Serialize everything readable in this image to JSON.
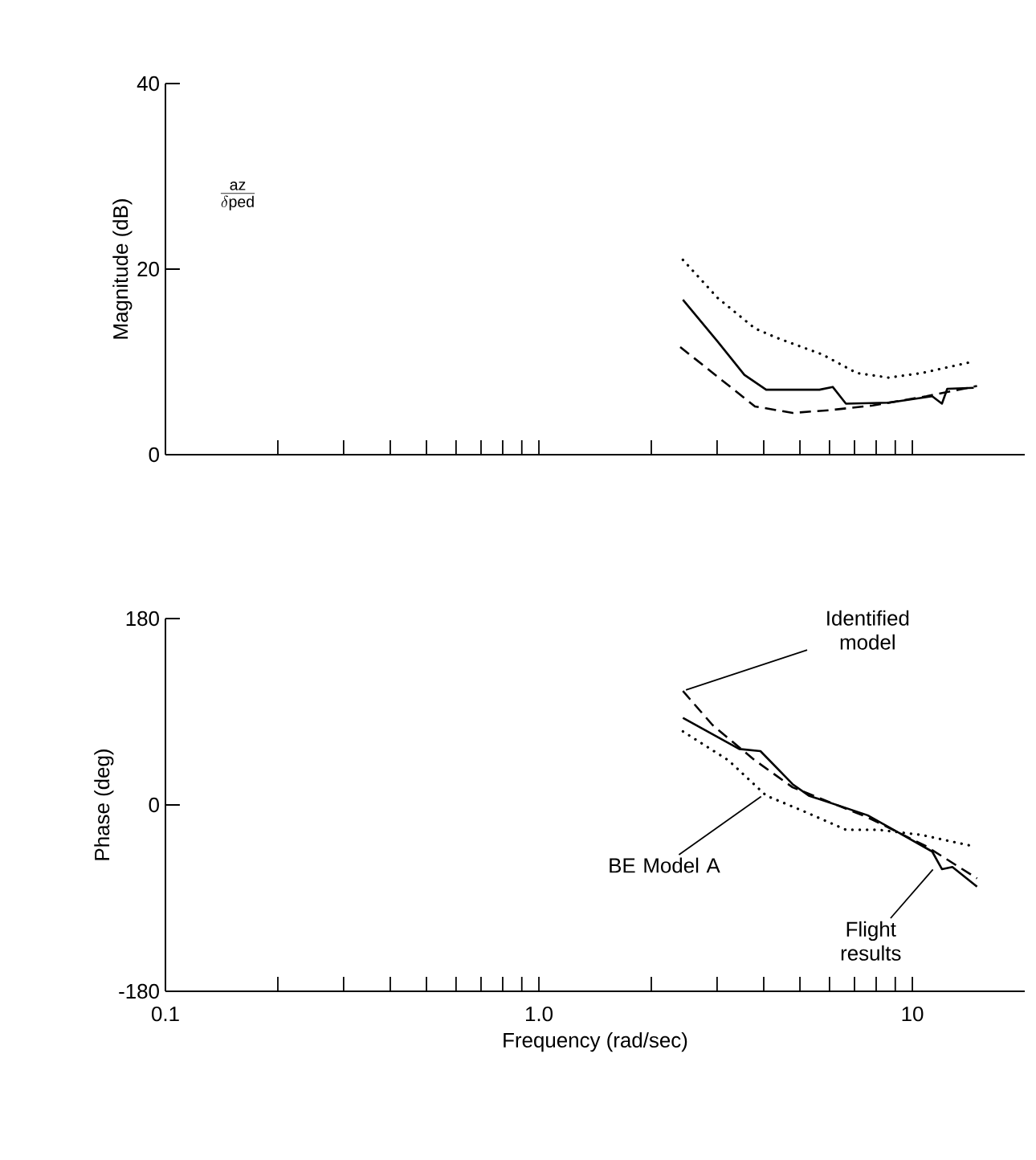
{
  "chart_data": [
    {
      "type": "line",
      "ylabel": "Magnitude (dB)",
      "annotations": [
        "\\frac{\\mathrm{az}}{\\delta\\mathrm{ped}}"
      ],
      "log": "x",
      "xlim": [
        0.1,
        20
      ],
      "ylim": [
        0,
        40
      ],
      "yticks": [
        0,
        20,
        40
      ],
      "tick_labels": "y",
      "xticks": [
        {
          "value": 0.1,
          "label": null
        },
        {
          "value": 0.2,
          "label": null
        },
        {
          "value": 0.3,
          "label": null
        },
        {
          "value": 0.4,
          "label": null
        },
        {
          "value": 0.5,
          "label": null
        },
        {
          "value": 0.6,
          "label": null
        },
        {
          "value": 0.7,
          "label": null
        },
        {
          "value": 0.8,
          "label": null
        },
        {
          "value": 0.9,
          "label": null
        },
        {
          "value": 1,
          "label": null
        },
        {
          "value": 2,
          "label": null
        },
        {
          "value": 3,
          "label": null
        },
        {
          "value": 4,
          "label": null
        },
        {
          "value": 5,
          "label": null
        },
        {
          "value": 6,
          "label": null
        },
        {
          "value": 7,
          "label": null
        },
        {
          "value": 8,
          "label": null
        },
        {
          "value": 9,
          "label": null
        },
        {
          "value": 10,
          "label": null
        }
      ],
      "series": [
        {
          "color": "#000000",
          "line_style": "solid",
          "x": [
            2.43,
            3.01,
            3.55,
            4.06,
            5.64,
            6.12,
            6.64,
            8.65,
            11.3,
            12.0,
            12.4,
            14.6
          ],
          "values": [
            16.7,
            12.2,
            8.6,
            7.0,
            7.0,
            7.3,
            5.5,
            5.6,
            6.3,
            5.5,
            7.1,
            7.2
          ]
        },
        {
          "color": "#000000",
          "line_style": "dashed",
          "x": [
            2.39,
            3.79,
            4.78,
            6.01,
            7.83,
            10.9,
            14.9
          ],
          "values": [
            11.6,
            5.2,
            4.5,
            4.8,
            5.3,
            6.3,
            7.4
          ]
        },
        {
          "color": "#000000",
          "line_style": "dotted",
          "x": [
            2.43,
            3.01,
            3.79,
            4.33,
            5.74,
            7.1,
            8.65,
            10.6,
            14.4
          ],
          "values": [
            21.0,
            16.9,
            13.6,
            12.6,
            10.8,
            8.8,
            8.3,
            8.8,
            10.0
          ]
        }
      ]
    },
    {
      "type": "line",
      "xlabel": "Frequency (rad/sec)",
      "ylabel": "Phase (deg)",
      "log": "x",
      "xlim": [
        0.1,
        20
      ],
      "ylim": [
        -180,
        180
      ],
      "yticks": [
        -180,
        0,
        180
      ],
      "annotations": [
        {
          "text": "Identified model",
          "x": 2.43,
          "y": 110
        },
        {
          "text": "BE Model A",
          "x": 4.0,
          "y": 10
        },
        {
          "text": "Flight results",
          "x": 11.5,
          "y": -60
        }
      ],
      "xticks": [
        {
          "value": 0.1,
          "label": "0.1"
        },
        {
          "value": 0.2,
          "label": null
        },
        {
          "value": 0.3,
          "label": null
        },
        {
          "value": 0.4,
          "label": null
        },
        {
          "value": 0.5,
          "label": null
        },
        {
          "value": 0.6,
          "label": null
        },
        {
          "value": 0.7,
          "label": null
        },
        {
          "value": 0.8,
          "label": null
        },
        {
          "value": 0.9,
          "label": null
        },
        {
          "value": 1,
          "label": "1.0"
        },
        {
          "value": 2,
          "label": null
        },
        {
          "value": 3,
          "label": null
        },
        {
          "value": 4,
          "label": null
        },
        {
          "value": 5,
          "label": null
        },
        {
          "value": 6,
          "label": null
        },
        {
          "value": 7,
          "label": null
        },
        {
          "value": 8,
          "label": null
        },
        {
          "value": 9,
          "label": null
        },
        {
          "value": 10,
          "label": "10"
        }
      ],
      "series": [
        {
          "color": "#000000",
          "line_style": "solid",
          "x": [
            2.43,
            3.44,
            3.92,
            4.78,
            5.28,
            7.59,
            9.22,
            11.3,
            12.0,
            12.8,
            14.9
          ],
          "values": [
            84,
            54,
            52,
            20,
            9,
            -10,
            -27,
            -45,
            -62,
            -60,
            -79
          ]
        },
        {
          "color": "#000000",
          "line_style": "dashed",
          "x": [
            2.43,
            2.92,
            3.79,
            4.78,
            7.59,
            10.9,
            14.9
          ],
          "values": [
            110,
            77,
            43,
            17,
            -12,
            -40,
            -71
          ]
        },
        {
          "color": "#000000",
          "line_style": "dotted",
          "x": [
            2.43,
            3.22,
            4.06,
            5.11,
            6.64,
            8.1,
            10.6,
            14.6
          ],
          "values": [
            71,
            43,
            9,
            -6,
            -24,
            -24,
            -29,
            -40
          ]
        }
      ]
    }
  ]
}
